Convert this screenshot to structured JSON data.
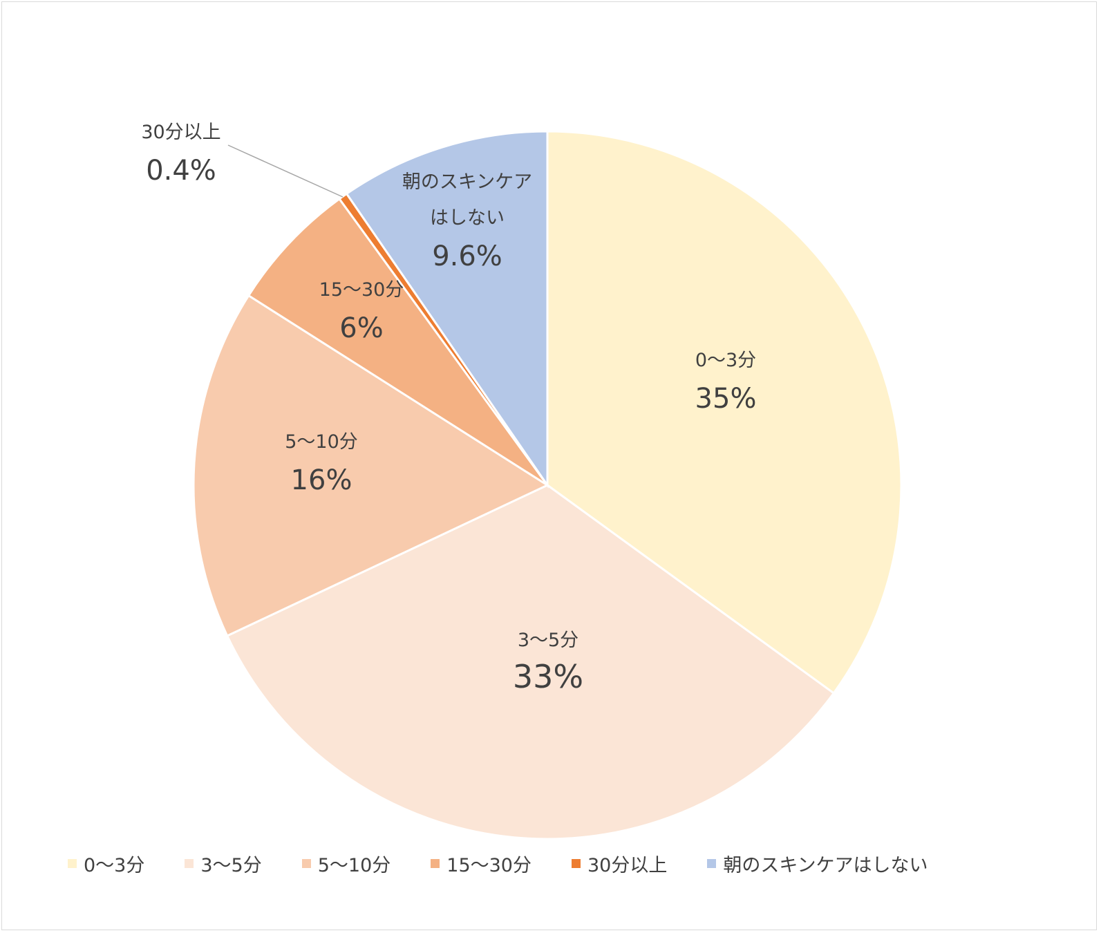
{
  "chart_data": {
    "type": "pie",
    "title": "",
    "start_angle_deg": 0,
    "direction": "clockwise",
    "legend_position": "bottom",
    "slices": [
      {
        "label": "0〜3分",
        "value": 35,
        "value_label": "35%",
        "color": "#FFF2CC",
        "label_lines": [
          "0〜3分"
        ]
      },
      {
        "label": "3〜5分",
        "value": 33,
        "value_label": "33%",
        "color": "#FBE5D6",
        "label_lines": [
          "3〜5分"
        ]
      },
      {
        "label": "5〜10分",
        "value": 16,
        "value_label": "16%",
        "color": "#F8CBAD",
        "label_lines": [
          "5〜10分"
        ]
      },
      {
        "label": "15〜30分",
        "value": 6,
        "value_label": "6%",
        "color": "#F4B183",
        "label_lines": [
          "15〜30分"
        ]
      },
      {
        "label": "30分以上",
        "value": 0.4,
        "value_label": "0.4%",
        "color": "#ED7D31",
        "label_lines": [
          "30分以上"
        ],
        "leader_line": true
      },
      {
        "label": "朝のスキンケアはしない",
        "value": 9.6,
        "value_label": "9.6%",
        "color": "#B4C7E7",
        "label_lines": [
          "朝のスキンケア",
          "はしない"
        ]
      }
    ]
  }
}
